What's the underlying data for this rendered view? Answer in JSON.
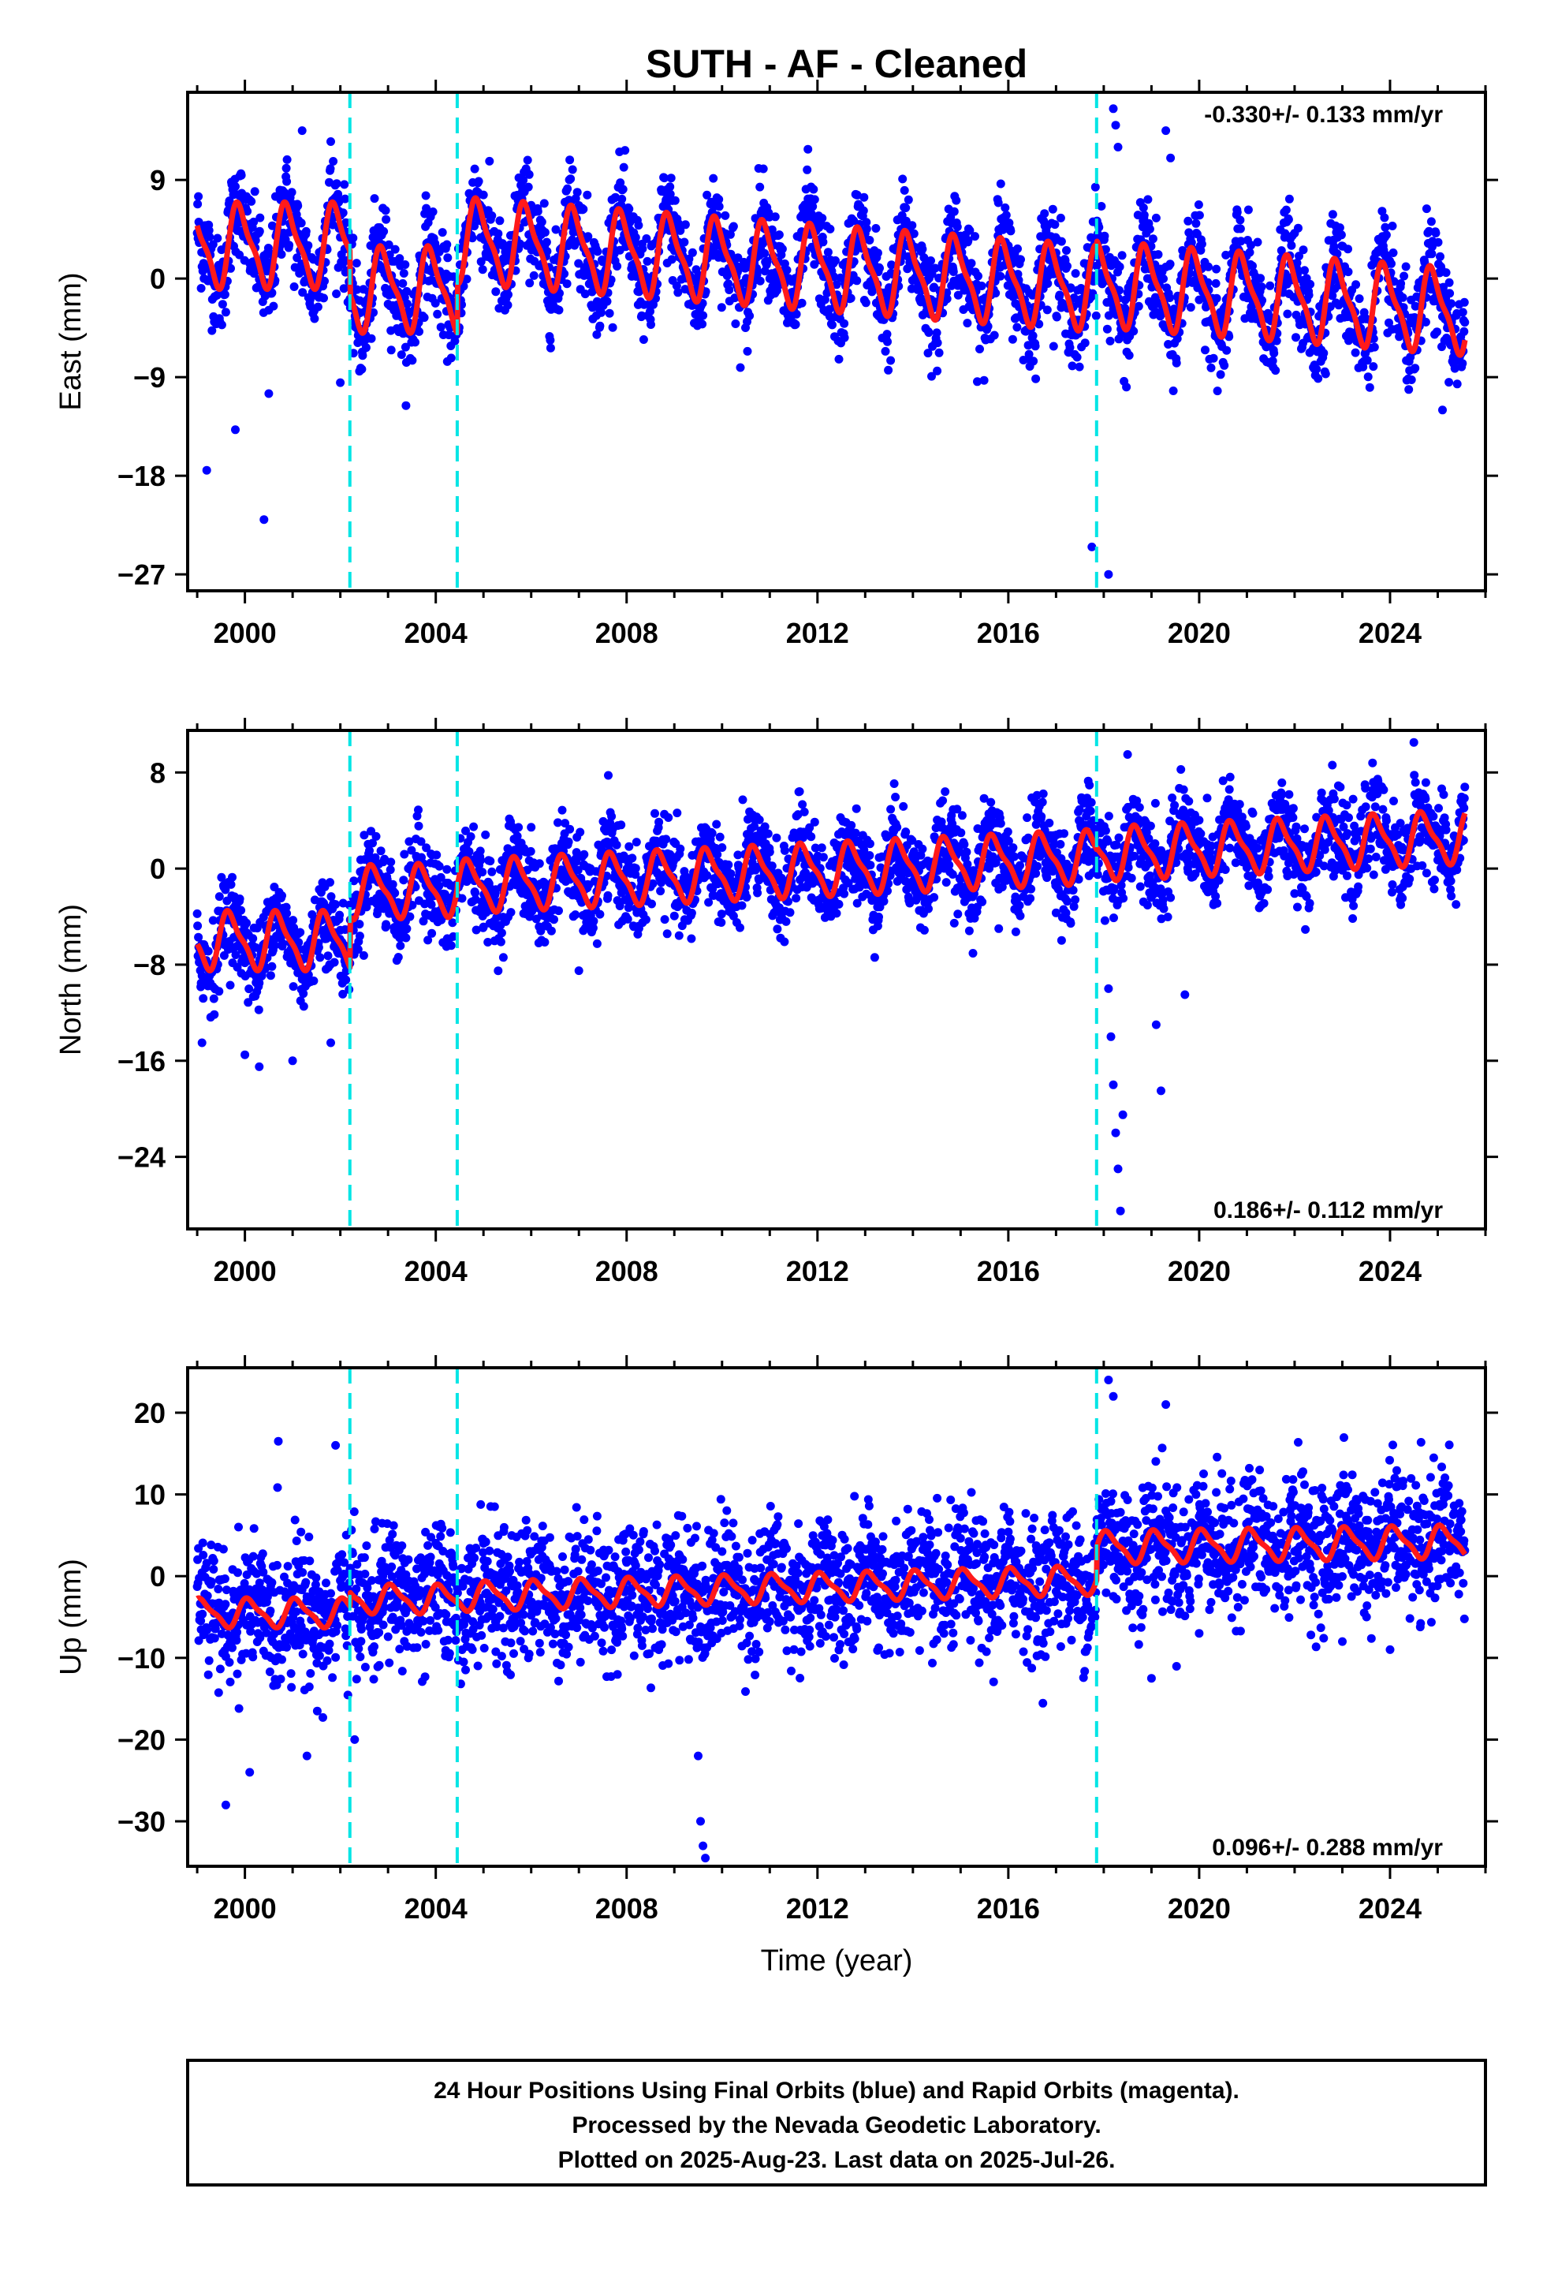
{
  "title": "SUTH  - AF - Cleaned",
  "footer": {
    "line1": "24 Hour Positions Using Final Orbits (blue) and Rapid Orbits (magenta).",
    "line2": "Processed by the Nevada Geodetic Laboratory.",
    "line3": "Plotted on 2025-Aug-23. Last data on 2025-Jul-26."
  },
  "colors": {
    "points": "#0000ff",
    "model": "#ff1a1a",
    "breaks": "#00e5e5",
    "frame": "#000000"
  },
  "chart_data": [
    {
      "type": "scatter",
      "component": "East",
      "ylabel": "East (mm)",
      "xlabel": "",
      "rate_text": "-0.330+/- 0.133 mm/yr",
      "rate_position": "top-right",
      "xlim": [
        1998.8,
        2026.0
      ],
      "ylim": [
        -28.5,
        17.0
      ],
      "xticks": [
        2000,
        2004,
        2008,
        2012,
        2016,
        2020,
        2024
      ],
      "yticks": [
        -27,
        -18,
        -9,
        0,
        9
      ],
      "breaks": [
        2002.2,
        2004.45,
        2017.85
      ],
      "model_offsets": [
        {
          "from": 1999.0,
          "to": 2002.2,
          "base": 3.0,
          "trend": 0.0,
          "amplitude": 3.5,
          "phase": 0.35
        },
        {
          "from": 2002.2,
          "to": 2004.45,
          "base": -1.0,
          "trend": 0.0,
          "amplitude": 3.5,
          "phase": 0.35
        },
        {
          "from": 2004.45,
          "to": 2017.85,
          "base": 3.5,
          "trend": -0.33,
          "amplitude": 3.5,
          "phase": 0.35
        },
        {
          "from": 2017.85,
          "to": 2025.57,
          "base": -0.5,
          "trend": -0.33,
          "amplitude": 3.5,
          "phase": 0.35
        }
      ],
      "scatter_sigma": 2.2,
      "outliers": [
        {
          "x": 1999.2,
          "y": -17.5
        },
        {
          "x": 1999.8,
          "y": -13.8
        },
        {
          "x": 2000.4,
          "y": -22.0
        },
        {
          "x": 2000.5,
          "y": -10.5
        },
        {
          "x": 2001.2,
          "y": 13.5
        },
        {
          "x": 2001.8,
          "y": 12.5
        },
        {
          "x": 2002.0,
          "y": -9.5
        },
        {
          "x": 2011.8,
          "y": 11.8
        },
        {
          "x": 2017.75,
          "y": -24.5
        },
        {
          "x": 2018.1,
          "y": -27.0
        },
        {
          "x": 2018.2,
          "y": 15.5
        },
        {
          "x": 2018.25,
          "y": 14.0
        },
        {
          "x": 2018.3,
          "y": 12.0
        },
        {
          "x": 2019.3,
          "y": 13.5
        },
        {
          "x": 2019.4,
          "y": 11.0
        },
        {
          "x": 2025.1,
          "y": -12.0
        }
      ]
    },
    {
      "type": "scatter",
      "component": "North",
      "ylabel": "North (mm)",
      "xlabel": "",
      "rate_text": "0.186+/- 0.112 mm/yr",
      "rate_position": "bottom-right",
      "xlim": [
        1998.8,
        2026.0
      ],
      "ylim": [
        -30.0,
        11.5
      ],
      "xticks": [
        2000,
        2004,
        2008,
        2012,
        2016,
        2020,
        2024
      ],
      "yticks": [
        -24,
        -16,
        -8,
        0,
        8
      ],
      "breaks": [
        2002.2,
        2004.45,
        2017.85
      ],
      "model_offsets": [
        {
          "from": 1999.0,
          "to": 2002.2,
          "base": -6.0,
          "trend": 0.0,
          "amplitude": 2.2,
          "phase": 0.55
        },
        {
          "from": 2002.2,
          "to": 2004.45,
          "base": -2.0,
          "trend": 0.1,
          "amplitude": 2.0,
          "phase": 0.55
        },
        {
          "from": 2004.45,
          "to": 2017.85,
          "base": -1.5,
          "trend": 0.186,
          "amplitude": 2.0,
          "phase": 0.55
        },
        {
          "from": 2017.85,
          "to": 2025.57,
          "base": 1.2,
          "trend": 0.186,
          "amplitude": 2.0,
          "phase": 0.55
        }
      ],
      "scatter_sigma": 1.8,
      "outliers": [
        {
          "x": 1999.1,
          "y": -14.5
        },
        {
          "x": 2000.0,
          "y": -15.5
        },
        {
          "x": 2000.3,
          "y": -16.5
        },
        {
          "x": 2001.0,
          "y": -16.0
        },
        {
          "x": 2001.8,
          "y": -14.5
        },
        {
          "x": 2007.0,
          "y": -8.5
        },
        {
          "x": 2015.8,
          "y": -5.0
        },
        {
          "x": 2018.1,
          "y": -10.0
        },
        {
          "x": 2018.15,
          "y": -14.0
        },
        {
          "x": 2018.2,
          "y": -18.0
        },
        {
          "x": 2018.25,
          "y": -22.0
        },
        {
          "x": 2018.3,
          "y": -25.0
        },
        {
          "x": 2018.35,
          "y": -28.5
        },
        {
          "x": 2018.4,
          "y": -20.5
        },
        {
          "x": 2018.5,
          "y": 9.5
        },
        {
          "x": 2019.1,
          "y": -13.0
        },
        {
          "x": 2019.2,
          "y": -18.5
        },
        {
          "x": 2019.7,
          "y": -10.5
        },
        {
          "x": 2024.5,
          "y": 10.5
        }
      ]
    },
    {
      "type": "scatter",
      "component": "Up",
      "ylabel": "Up (mm)",
      "xlabel": "Time (year)",
      "rate_text": "0.096+/- 0.288 mm/yr",
      "rate_position": "bottom-right",
      "xlim": [
        1998.8,
        2026.0
      ],
      "ylim": [
        -35.5,
        25.5
      ],
      "xticks": [
        2000,
        2004,
        2008,
        2012,
        2016,
        2020,
        2024
      ],
      "yticks": [
        -30,
        -20,
        -10,
        0,
        10,
        20
      ],
      "breaks": [
        2002.2,
        2004.45,
        2017.85
      ],
      "model_offsets": [
        {
          "from": 1999.0,
          "to": 2002.2,
          "base": -4.5,
          "trend": 0.0,
          "amplitude": 1.6,
          "phase": 0.15
        },
        {
          "from": 2002.2,
          "to": 2004.45,
          "base": -2.8,
          "trend": 0.0,
          "amplitude": 1.6,
          "phase": 0.15
        },
        {
          "from": 2004.45,
          "to": 2017.85,
          "base": -2.5,
          "trend": 0.15,
          "amplitude": 1.6,
          "phase": 0.15
        },
        {
          "from": 2017.85,
          "to": 2025.57,
          "base": 3.5,
          "trend": 0.096,
          "amplitude": 1.8,
          "phase": 0.15
        }
      ],
      "scatter_sigma": 4.0,
      "outliers": [
        {
          "x": 1999.6,
          "y": -28.0
        },
        {
          "x": 2000.1,
          "y": -24.0
        },
        {
          "x": 2000.7,
          "y": 16.5
        },
        {
          "x": 2001.3,
          "y": -22.0
        },
        {
          "x": 2001.9,
          "y": 16.0
        },
        {
          "x": 2002.3,
          "y": -20.0
        },
        {
          "x": 2009.5,
          "y": -22.0
        },
        {
          "x": 2009.55,
          "y": -30.0
        },
        {
          "x": 2009.6,
          "y": -33.0
        },
        {
          "x": 2009.65,
          "y": -34.5
        },
        {
          "x": 2018.1,
          "y": 24.0
        },
        {
          "x": 2018.2,
          "y": 22.0
        },
        {
          "x": 2019.0,
          "y": -12.5
        },
        {
          "x": 2019.3,
          "y": 21.0
        },
        {
          "x": 2020.0,
          "y": -7.0
        },
        {
          "x": 2023.0,
          "y": -8.0
        },
        {
          "x": 2024.0,
          "y": -9.0
        }
      ]
    }
  ]
}
